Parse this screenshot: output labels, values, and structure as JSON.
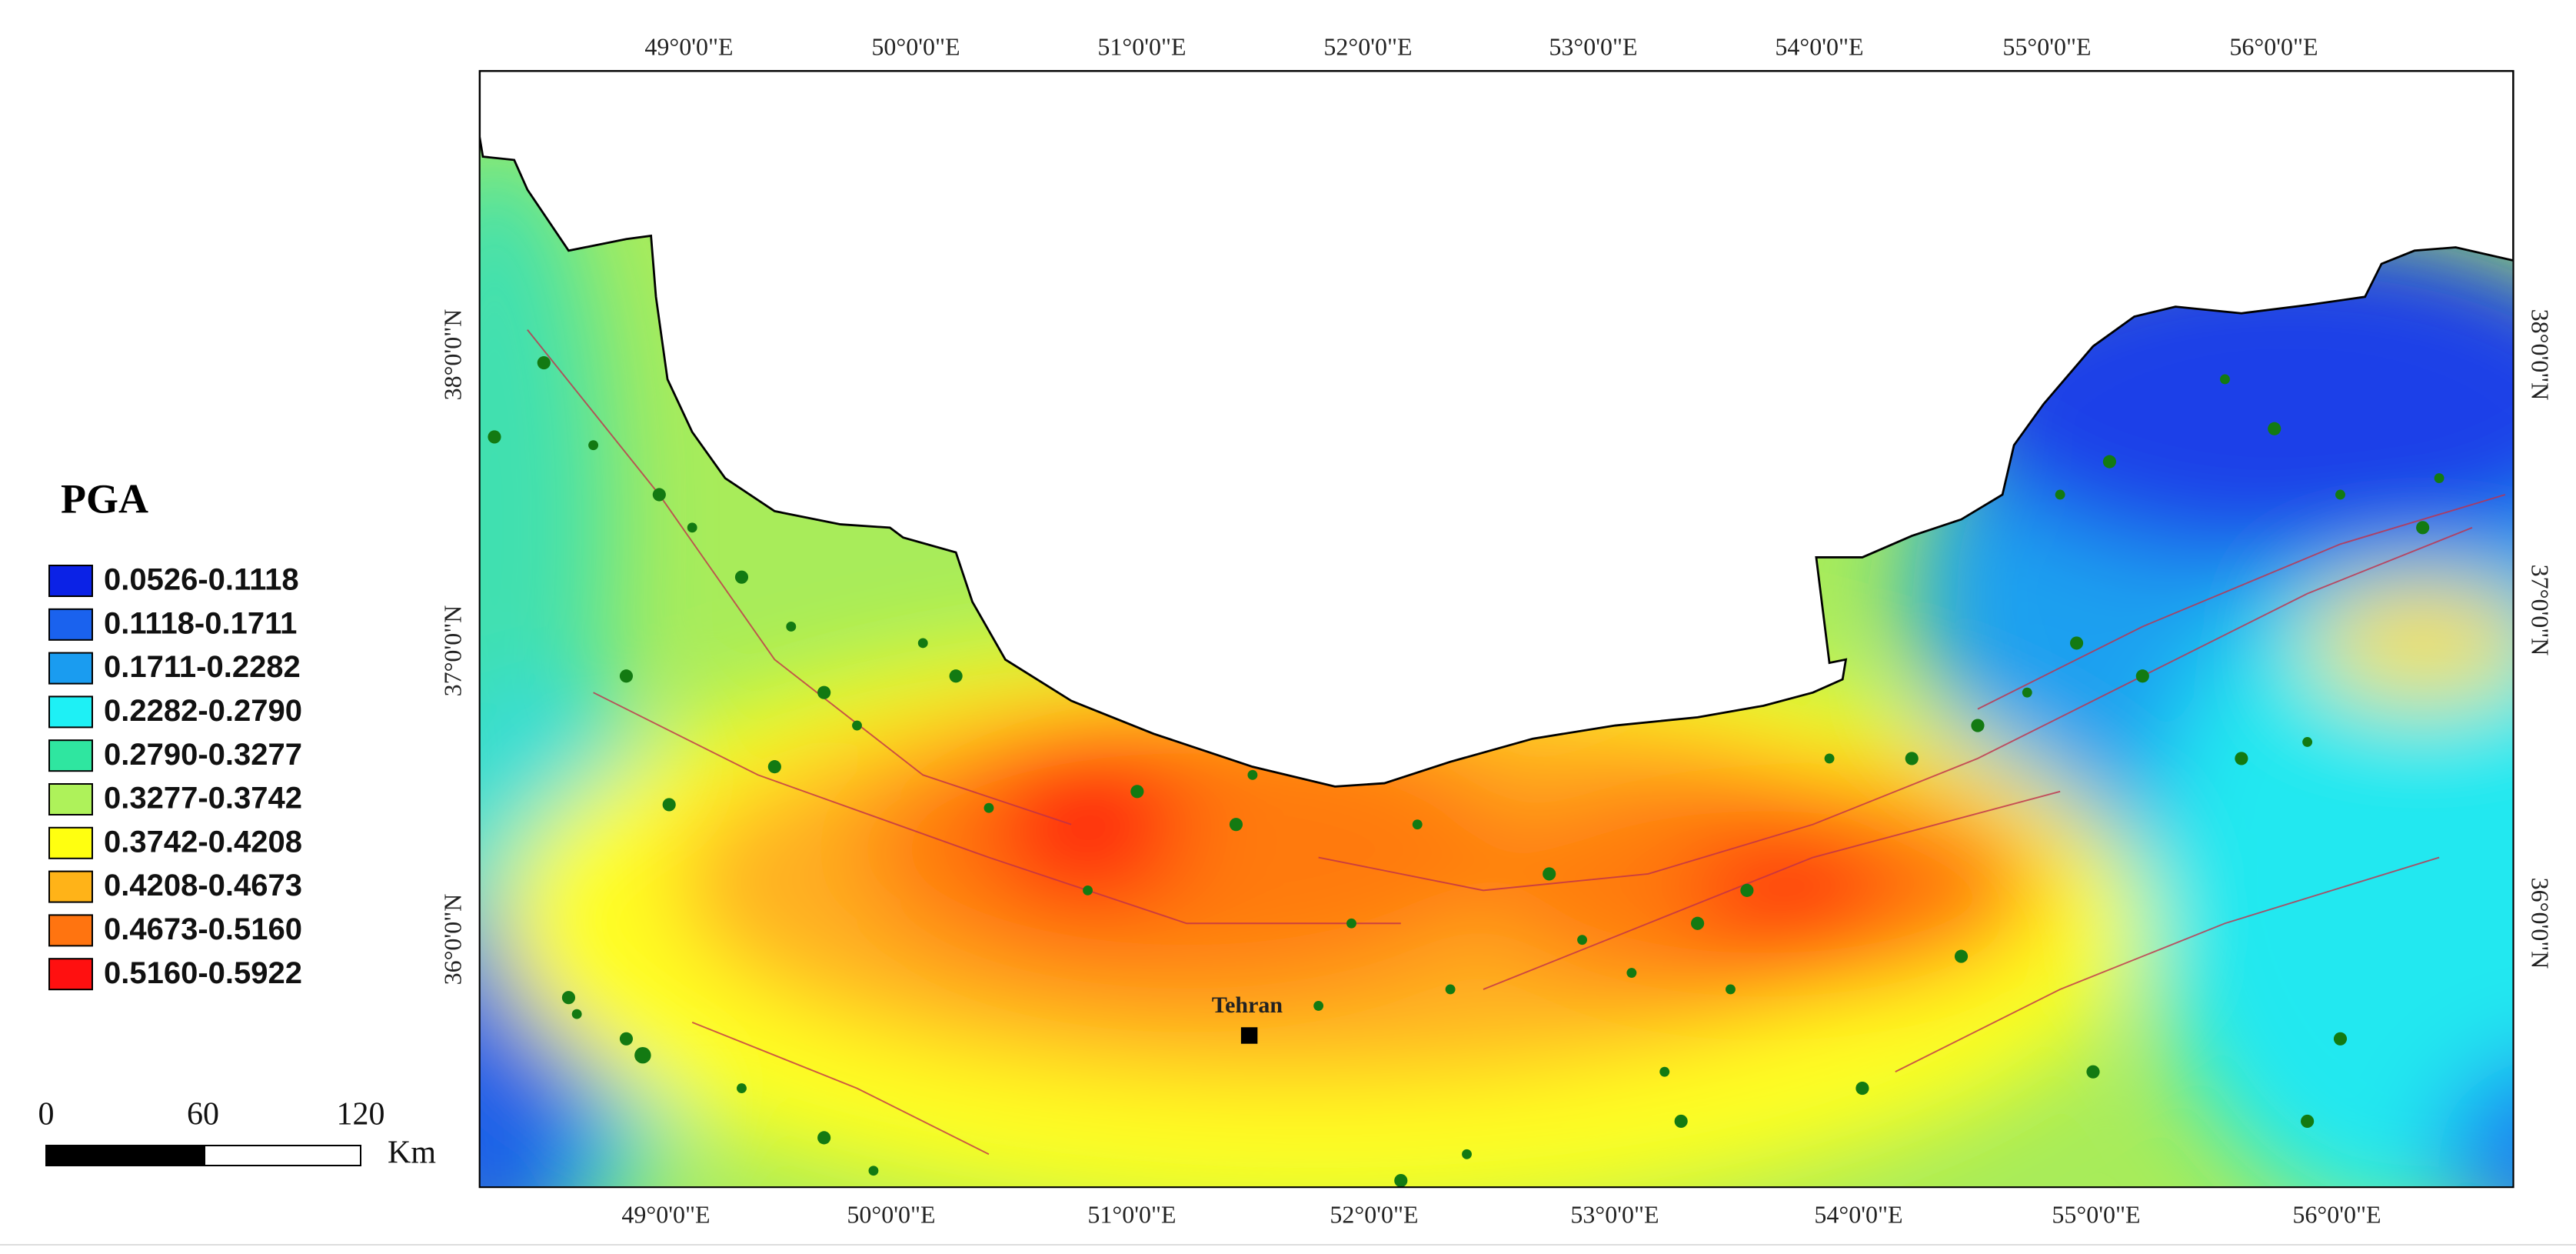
{
  "legend": {
    "title": "PGA",
    "classes": [
      {
        "label": "0.0526-0.1118",
        "color": "#0b22e6"
      },
      {
        "label": "0.1118-0.1711",
        "color": "#1a62ee"
      },
      {
        "label": "0.1711-0.2282",
        "color": "#1a9cf0"
      },
      {
        "label": "0.2282-0.2790",
        "color": "#1ef0f5"
      },
      {
        "label": "0.2790-0.3277",
        "color": "#2fe6a0"
      },
      {
        "label": "0.3277-0.3742",
        "color": "#aef25a"
      },
      {
        "label": "0.3742-0.4208",
        "color": "#ffff10"
      },
      {
        "label": "0.4208-0.4673",
        "color": "#ffb318"
      },
      {
        "label": "0.4673-0.5160",
        "color": "#ff7410"
      },
      {
        "label": "0.5160-0.5922",
        "color": "#ff1010"
      }
    ]
  },
  "scale_bar": {
    "labels": [
      "0",
      "60",
      "120"
    ],
    "unit": "Km"
  },
  "axes": {
    "top": [
      "49°0'0\"E",
      "50°0'0\"E",
      "51°0'0\"E",
      "52°0'0\"E",
      "53°0'0\"E",
      "54°0'0\"E",
      "55°0'0\"E",
      "56°0'0\"E"
    ],
    "bottom": [
      "49°0'0\"E",
      "50°0'0\"E",
      "51°0'0\"E",
      "52°0'0\"E",
      "53°0'0\"E",
      "54°0'0\"E",
      "55°0'0\"E",
      "56°0'0\"E"
    ],
    "left": [
      "38°0'0\"N",
      "37°0'0\"N",
      "36°0'0\"N"
    ],
    "right": [
      "38°0'0\"N",
      "37°0'0\"N",
      "36°0'0\"N"
    ]
  },
  "places": [
    {
      "label": "Tehran"
    }
  ]
}
